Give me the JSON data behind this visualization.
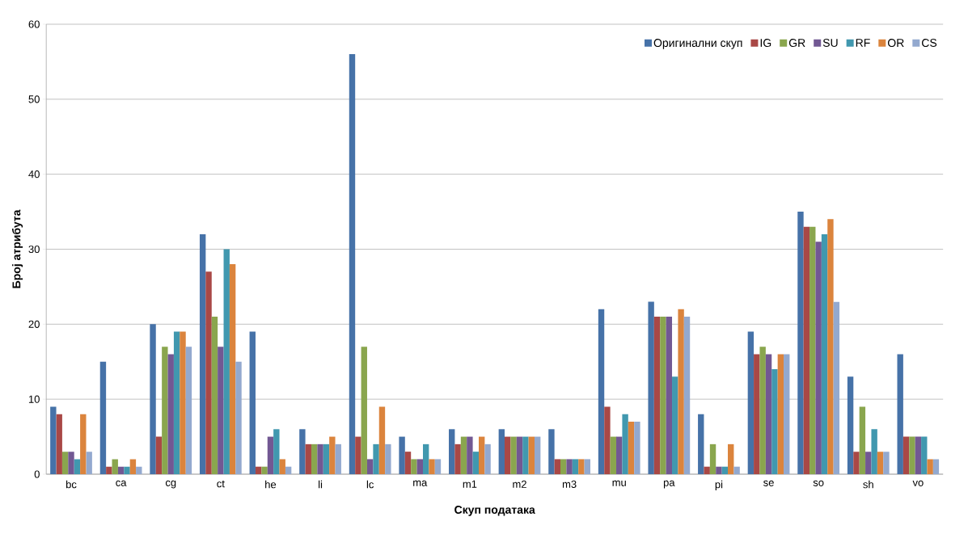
{
  "chart_data": {
    "type": "bar",
    "xlabel": "Скуп података",
    "ylabel": "Број атрибута",
    "categories": [
      "bc",
      "ca",
      "cg",
      "ct",
      "he",
      "li",
      "lc",
      "ma",
      "m1",
      "m2",
      "m3",
      "mu",
      "pa",
      "pi",
      "se",
      "so",
      "sh",
      "vo"
    ],
    "series": [
      {
        "name": "Оригинални скуп",
        "color": "#4672a8",
        "values": [
          9,
          15,
          20,
          32,
          19,
          6,
          56,
          5,
          6,
          6,
          6,
          22,
          23,
          8,
          19,
          35,
          13,
          16
        ]
      },
      {
        "name": "IG",
        "color": "#a94846",
        "values": [
          8,
          1,
          5,
          27,
          1,
          4,
          5,
          3,
          4,
          5,
          2,
          9,
          21,
          1,
          16,
          33,
          3,
          5
        ]
      },
      {
        "name": "GR",
        "color": "#8aa64e",
        "values": [
          3,
          2,
          17,
          21,
          1,
          4,
          17,
          2,
          5,
          5,
          2,
          5,
          21,
          4,
          17,
          33,
          9,
          5
        ]
      },
      {
        "name": "SU",
        "color": "#725893",
        "values": [
          3,
          1,
          16,
          17,
          5,
          4,
          2,
          2,
          5,
          5,
          2,
          5,
          21,
          1,
          16,
          31,
          3,
          5
        ]
      },
      {
        "name": "RF",
        "color": "#4198af",
        "values": [
          2,
          1,
          19,
          30,
          6,
          4,
          4,
          4,
          3,
          5,
          2,
          8,
          13,
          1,
          14,
          32,
          6,
          5
        ]
      },
      {
        "name": "OR",
        "color": "#db843d",
        "values": [
          8,
          2,
          19,
          28,
          2,
          5,
          9,
          2,
          5,
          5,
          2,
          7,
          22,
          4,
          16,
          34,
          3,
          2
        ]
      },
      {
        "name": "CS",
        "color": "#93a9cf",
        "values": [
          3,
          1,
          17,
          15,
          1,
          4,
          4,
          2,
          4,
          5,
          2,
          7,
          21,
          1,
          16,
          23,
          3,
          2
        ]
      }
    ],
    "ylim": [
      0,
      60
    ],
    "yticks": [
      0,
      10,
      20,
      30,
      40,
      50,
      60
    ],
    "grid": "y",
    "legend": "top right"
  }
}
